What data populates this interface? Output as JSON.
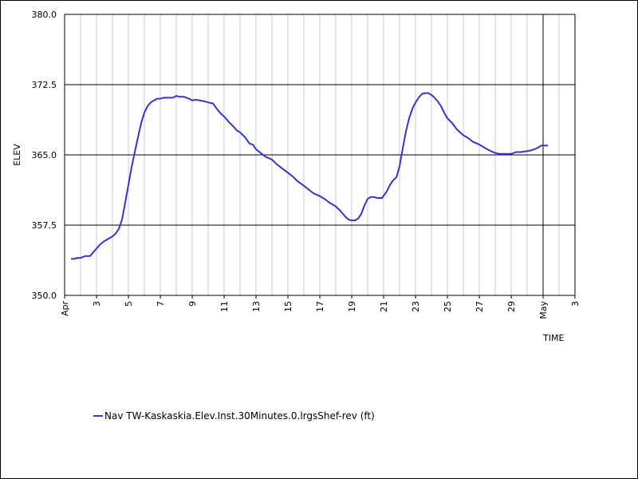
{
  "chart_data": {
    "type": "line",
    "ylabel": "ELEV",
    "xlabel": "TIME",
    "ylim": [
      350.0,
      380.0
    ],
    "y_ticks": [
      "350.0",
      "357.5",
      "365.0",
      "372.5",
      "380.0"
    ],
    "x_range_days": [
      1,
      33
    ],
    "x_ticks": [
      {
        "day": 1,
        "label": "Apr"
      },
      {
        "day": 3,
        "label": "3"
      },
      {
        "day": 5,
        "label": "5"
      },
      {
        "day": 7,
        "label": "7"
      },
      {
        "day": 9,
        "label": "9"
      },
      {
        "day": 11,
        "label": "11"
      },
      {
        "day": 13,
        "label": "13"
      },
      {
        "day": 15,
        "label": "15"
      },
      {
        "day": 17,
        "label": "17"
      },
      {
        "day": 19,
        "label": "19"
      },
      {
        "day": 21,
        "label": "21"
      },
      {
        "day": 23,
        "label": "23"
      },
      {
        "day": 25,
        "label": "25"
      },
      {
        "day": 27,
        "label": "27"
      },
      {
        "day": 29,
        "label": "29"
      },
      {
        "day": 31,
        "label": "May"
      },
      {
        "day": 33,
        "label": "3"
      }
    ],
    "month_boundary_day": 31,
    "grid": true,
    "legend": "bottom-left",
    "series": [
      {
        "name": "Nav TW-Kaskaskia.Elev.Inst.30Minutes.0.lrgsShef-rev (ft)",
        "color": "#3333dd",
        "x": [
          1.4,
          1.6,
          1.8,
          2.0,
          2.3,
          2.6,
          2.8,
          3.0,
          3.2,
          3.5,
          3.8,
          4.0,
          4.2,
          4.4,
          4.6,
          4.8,
          5.0,
          5.2,
          5.5,
          5.8,
          6.0,
          6.2,
          6.4,
          6.6,
          6.8,
          7.0,
          7.2,
          7.5,
          7.8,
          8.0,
          8.2,
          8.5,
          8.8,
          9.0,
          9.2,
          9.5,
          9.8,
          10.0,
          10.3,
          10.6,
          10.8,
          11.0,
          11.3,
          11.6,
          11.8,
          12.0,
          12.3,
          12.6,
          12.8,
          13.0,
          13.3,
          13.6,
          14.0,
          14.3,
          14.6,
          15.0,
          15.3,
          15.6,
          16.0,
          16.3,
          16.6,
          17.0,
          17.3,
          17.6,
          18.0,
          18.3,
          18.6,
          18.8,
          19.0,
          19.2,
          19.4,
          19.6,
          19.8,
          20.0,
          20.2,
          20.4,
          20.6,
          20.9,
          21.2,
          21.4,
          21.6,
          21.8,
          22.0,
          22.2,
          22.4,
          22.6,
          22.8,
          23.0,
          23.2,
          23.4,
          23.6,
          23.8,
          24.0,
          24.2,
          24.4,
          24.6,
          24.8,
          25.0,
          25.3,
          25.6,
          26.0,
          26.3,
          26.6,
          27.0,
          27.3,
          27.6,
          28.0,
          28.3,
          28.6,
          29.0,
          29.3,
          29.6,
          30.0,
          30.3,
          30.6,
          30.9,
          31.1,
          31.3
        ],
        "y": [
          353.9,
          353.9,
          354.0,
          354.0,
          354.2,
          354.2,
          354.6,
          355.0,
          355.4,
          355.8,
          356.1,
          356.3,
          356.6,
          357.1,
          358.1,
          359.9,
          361.8,
          363.7,
          366.1,
          368.4,
          369.5,
          370.2,
          370.6,
          370.8,
          371.0,
          371.0,
          371.1,
          371.1,
          371.1,
          371.3,
          371.2,
          371.2,
          371.0,
          370.8,
          370.9,
          370.8,
          370.7,
          370.6,
          370.5,
          369.8,
          369.4,
          369.1,
          368.5,
          368.0,
          367.6,
          367.4,
          366.9,
          366.2,
          366.1,
          365.6,
          365.2,
          364.8,
          364.5,
          364.0,
          363.6,
          363.1,
          362.7,
          362.2,
          361.7,
          361.3,
          360.9,
          360.6,
          360.3,
          359.9,
          359.5,
          359.0,
          358.4,
          358.1,
          358.0,
          358.0,
          358.2,
          358.7,
          359.6,
          360.3,
          360.5,
          360.5,
          360.4,
          360.4,
          361.1,
          361.8,
          362.3,
          362.6,
          363.8,
          365.7,
          367.5,
          368.9,
          369.9,
          370.6,
          371.1,
          371.5,
          371.6,
          371.6,
          371.4,
          371.1,
          370.7,
          370.2,
          369.5,
          368.9,
          368.4,
          367.7,
          367.1,
          366.8,
          366.4,
          366.1,
          365.8,
          365.5,
          365.2,
          365.1,
          365.1,
          365.1,
          365.3,
          365.3,
          365.4,
          365.5,
          365.7,
          366.0,
          366.0,
          366.0
        ]
      }
    ]
  }
}
